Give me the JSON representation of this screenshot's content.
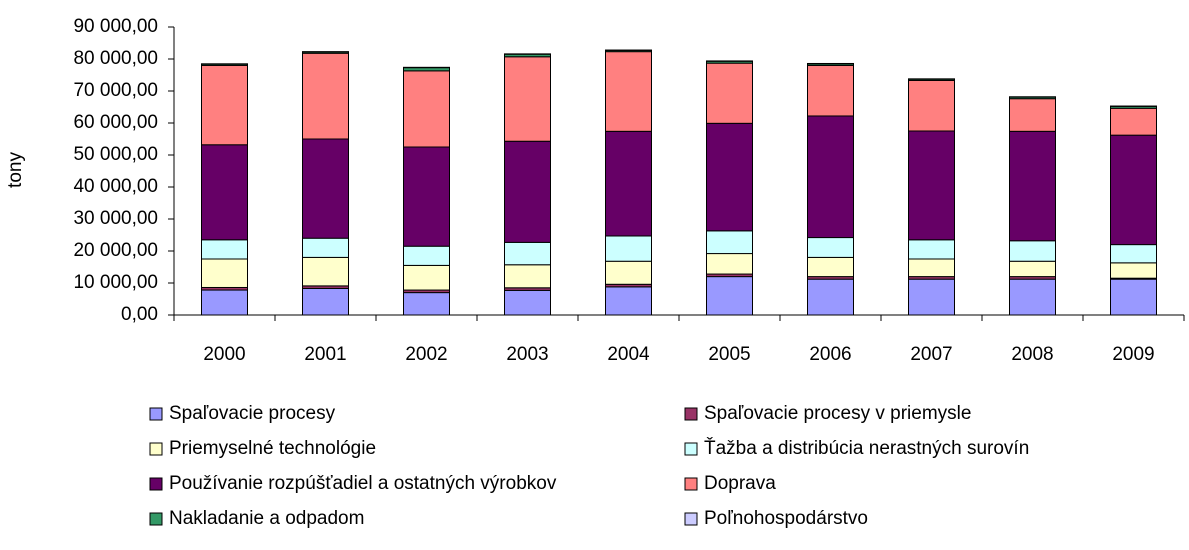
{
  "chart_data": {
    "type": "stacked_bar",
    "y_label": "tony",
    "categories": [
      "2000",
      "2001",
      "2002",
      "2003",
      "2004",
      "2005",
      "2006",
      "2007",
      "2008",
      "2009"
    ],
    "series": [
      {
        "name": "Spaľovacie procesy",
        "color": "#9999ff",
        "values": [
          7800,
          8300,
          7000,
          7700,
          8800,
          12000,
          11200,
          11200,
          11200,
          11200
        ]
      },
      {
        "name": "Spaľovacie procesy v priemysle",
        "color": "#993366",
        "values": [
          800,
          800,
          800,
          800,
          800,
          800,
          800,
          800,
          800,
          300
        ]
      },
      {
        "name": "Priemyselné technológie",
        "color": "#ffffcc",
        "values": [
          8900,
          8900,
          7700,
          7200,
          7200,
          6400,
          6000,
          5500,
          4800,
          4800
        ]
      },
      {
        "name": "Ťažba a distribúcia nerastných surovín",
        "color": "#ccffff",
        "values": [
          6000,
          6000,
          6000,
          7000,
          7900,
          7100,
          6200,
          6000,
          6400,
          5700
        ]
      },
      {
        "name": "Používanie rozpúšťadiel a ostatných výrobkov",
        "color": "#660066",
        "values": [
          29700,
          31000,
          31000,
          31600,
          32700,
          33600,
          38000,
          34000,
          34200,
          34200
        ]
      },
      {
        "name": "Doprava",
        "color": "#ff8080",
        "values": [
          24800,
          26800,
          23800,
          26400,
          24900,
          18800,
          15800,
          15800,
          10200,
          8400
        ]
      },
      {
        "name": "Nakladanie a odpadom",
        "color": "#339966",
        "values": [
          400,
          400,
          1000,
          800,
          400,
          600,
          500,
          400,
          500,
          600
        ]
      },
      {
        "name": "Poľnohospodárstvo",
        "color": "#ccccff",
        "values": [
          100,
          100,
          100,
          100,
          100,
          100,
          100,
          100,
          100,
          100
        ]
      }
    ],
    "ylim": [
      0,
      90000
    ],
    "yticks": [
      {
        "value": 0,
        "label": "0,00"
      },
      {
        "value": 10000,
        "label": "10 000,00"
      },
      {
        "value": 20000,
        "label": "20 000,00"
      },
      {
        "value": 30000,
        "label": "30 000,00"
      },
      {
        "value": 40000,
        "label": "40 000,00"
      },
      {
        "value": 50000,
        "label": "50 000,00"
      },
      {
        "value": 60000,
        "label": "60 000,00"
      },
      {
        "value": 70000,
        "label": "70 000,00"
      },
      {
        "value": 80000,
        "label": "80 000,00"
      },
      {
        "value": 90000,
        "label": "90 000,00"
      }
    ],
    "legend": "bottom"
  }
}
